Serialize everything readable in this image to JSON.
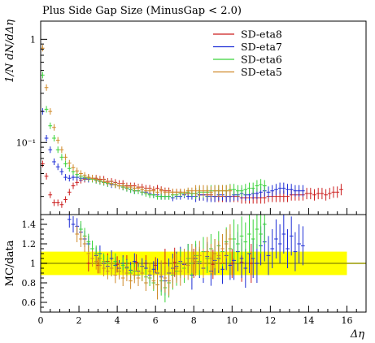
{
  "chart_data": {
    "type": "scatter",
    "title": "Plus Side Gap Size (MinusGap < 2.0)",
    "xlabel": "Δη",
    "xlim": [
      0,
      17
    ],
    "xticks": [
      "0",
      "2",
      "4",
      "6",
      "8",
      "10",
      "12",
      "14",
      "16"
    ],
    "xtick_values": [
      0,
      2,
      4,
      6,
      8,
      10,
      12,
      14,
      16
    ],
    "legend_position": "top-right",
    "colors": {
      "SD-eta8": "#cc1f1f",
      "SD-eta7": "#1f2fd6",
      "SD-eta6": "#3ad43a",
      "SD-eta5": "#d08a2a",
      "band": "#ffff00",
      "refline": "#9a9a00"
    },
    "main_panel": {
      "ylabel": "1/N dN/dΔη",
      "yscale": "log",
      "ylim": [
        0.02,
        1.5
      ],
      "yticks": [
        "1",
        "10⁻¹"
      ],
      "ytick_values": [
        1,
        0.1
      ],
      "series": [
        {
          "name": "SD-eta8",
          "x": [
            0.1,
            0.3,
            0.5,
            0.7,
            0.9,
            1.1,
            1.3,
            1.5,
            1.7,
            1.9,
            2.1,
            2.3,
            2.5,
            2.7,
            2.9,
            3.1,
            3.3,
            3.5,
            3.7,
            3.9,
            4.1,
            4.3,
            4.5,
            4.7,
            4.9,
            5.1,
            5.3,
            5.5,
            5.7,
            5.9,
            6.1,
            6.3,
            6.5,
            6.7,
            6.9,
            7.1,
            7.3,
            7.5,
            7.7,
            7.9,
            8.1,
            8.3,
            8.5,
            8.7,
            8.9,
            9.1,
            9.3,
            9.5,
            9.7,
            9.9,
            10.1,
            10.3,
            10.5,
            10.7,
            10.9,
            11.1,
            11.3,
            11.5,
            11.7,
            11.9,
            12.1,
            12.3,
            12.5,
            12.7,
            12.9,
            13.1,
            13.3,
            13.5,
            13.7,
            13.9,
            14.1,
            14.3,
            14.5,
            14.7,
            14.9,
            15.1,
            15.3,
            15.5,
            15.7
          ],
          "y": [
            0.062,
            0.047,
            0.031,
            0.026,
            0.026,
            0.025,
            0.028,
            0.033,
            0.038,
            0.041,
            0.043,
            0.044,
            0.046,
            0.045,
            0.045,
            0.044,
            0.044,
            0.042,
            0.042,
            0.041,
            0.04,
            0.04,
            0.038,
            0.038,
            0.038,
            0.037,
            0.037,
            0.036,
            0.036,
            0.035,
            0.036,
            0.035,
            0.034,
            0.034,
            0.033,
            0.033,
            0.033,
            0.032,
            0.032,
            0.032,
            0.032,
            0.031,
            0.031,
            0.031,
            0.031,
            0.03,
            0.03,
            0.03,
            0.03,
            0.03,
            0.03,
            0.03,
            0.029,
            0.029,
            0.029,
            0.029,
            0.029,
            0.029,
            0.029,
            0.03,
            0.03,
            0.03,
            0.03,
            0.03,
            0.03,
            0.031,
            0.031,
            0.031,
            0.031,
            0.032,
            0.032,
            0.031,
            0.032,
            0.032,
            0.031,
            0.032,
            0.033,
            0.033,
            0.035
          ]
        },
        {
          "name": "SD-eta7",
          "x": [
            0.1,
            0.3,
            0.5,
            0.7,
            0.9,
            1.1,
            1.3,
            1.5,
            1.7,
            1.9,
            2.1,
            2.3,
            2.5,
            2.7,
            2.9,
            3.1,
            3.3,
            3.5,
            3.7,
            3.9,
            4.1,
            4.3,
            4.5,
            4.7,
            4.9,
            5.1,
            5.3,
            5.5,
            5.7,
            5.9,
            6.1,
            6.3,
            6.5,
            6.7,
            6.9,
            7.1,
            7.3,
            7.5,
            7.7,
            7.9,
            8.1,
            8.3,
            8.5,
            8.7,
            8.9,
            9.1,
            9.3,
            9.5,
            9.7,
            9.9,
            10.1,
            10.3,
            10.5,
            10.7,
            10.9,
            11.1,
            11.3,
            11.5,
            11.7,
            11.9,
            12.1,
            12.3,
            12.5,
            12.7,
            12.9,
            13.1,
            13.3,
            13.5,
            13.7
          ],
          "y": [
            0.2,
            0.11,
            0.085,
            0.065,
            0.058,
            0.052,
            0.046,
            0.045,
            0.046,
            0.046,
            0.045,
            0.045,
            0.044,
            0.044,
            0.043,
            0.042,
            0.041,
            0.04,
            0.039,
            0.039,
            0.038,
            0.037,
            0.036,
            0.035,
            0.034,
            0.034,
            0.033,
            0.033,
            0.032,
            0.031,
            0.031,
            0.03,
            0.03,
            0.03,
            0.029,
            0.03,
            0.03,
            0.031,
            0.03,
            0.03,
            0.03,
            0.031,
            0.031,
            0.03,
            0.03,
            0.03,
            0.031,
            0.031,
            0.03,
            0.03,
            0.031,
            0.031,
            0.032,
            0.031,
            0.031,
            0.032,
            0.032,
            0.033,
            0.034,
            0.033,
            0.034,
            0.035,
            0.036,
            0.036,
            0.035,
            0.035,
            0.034,
            0.034,
            0.034
          ]
        },
        {
          "name": "SD-eta6",
          "x": [
            0.1,
            0.3,
            0.5,
            0.7,
            0.9,
            1.1,
            1.3,
            1.5,
            1.7,
            1.9,
            2.1,
            2.3,
            2.5,
            2.7,
            2.9,
            3.1,
            3.3,
            3.5,
            3.7,
            3.9,
            4.1,
            4.3,
            4.5,
            4.7,
            4.9,
            5.1,
            5.3,
            5.5,
            5.7,
            5.9,
            6.1,
            6.3,
            6.5,
            6.7,
            6.9,
            7.1,
            7.3,
            7.5,
            7.7,
            7.9,
            8.1,
            8.3,
            8.5,
            8.7,
            8.9,
            9.1,
            9.3,
            9.5,
            9.7,
            9.9,
            10.1,
            10.3,
            10.5,
            10.7,
            10.9,
            11.1,
            11.3,
            11.5,
            11.7
          ],
          "y": [
            0.45,
            0.21,
            0.145,
            0.11,
            0.085,
            0.072,
            0.062,
            0.056,
            0.052,
            0.049,
            0.047,
            0.046,
            0.045,
            0.044,
            0.043,
            0.042,
            0.041,
            0.04,
            0.04,
            0.039,
            0.038,
            0.037,
            0.036,
            0.035,
            0.034,
            0.034,
            0.033,
            0.032,
            0.031,
            0.031,
            0.03,
            0.03,
            0.03,
            0.03,
            0.031,
            0.031,
            0.032,
            0.032,
            0.033,
            0.032,
            0.032,
            0.033,
            0.033,
            0.033,
            0.034,
            0.034,
            0.034,
            0.034,
            0.034,
            0.035,
            0.035,
            0.034,
            0.034,
            0.035,
            0.036,
            0.036,
            0.038,
            0.039,
            0.038
          ]
        },
        {
          "name": "SD-eta5",
          "x": [
            0.1,
            0.3,
            0.5,
            0.7,
            0.9,
            1.1,
            1.3,
            1.5,
            1.7,
            1.9,
            2.1,
            2.3,
            2.5,
            2.7,
            2.9,
            3.1,
            3.3,
            3.5,
            3.7,
            3.9,
            4.1,
            4.3,
            4.5,
            4.7,
            4.9,
            5.1,
            5.3,
            5.5,
            5.7,
            5.9,
            6.1,
            6.3,
            6.5,
            6.7,
            6.9,
            7.1,
            7.3,
            7.5,
            7.7,
            7.9,
            8.1,
            8.3,
            8.5,
            8.7,
            8.9,
            9.1,
            9.3,
            9.5,
            9.7,
            9.9
          ],
          "y": [
            0.82,
            0.34,
            0.2,
            0.14,
            0.105,
            0.085,
            0.072,
            0.063,
            0.057,
            0.053,
            0.05,
            0.048,
            0.046,
            0.045,
            0.044,
            0.043,
            0.042,
            0.041,
            0.04,
            0.039,
            0.038,
            0.038,
            0.037,
            0.037,
            0.036,
            0.036,
            0.035,
            0.034,
            0.034,
            0.034,
            0.033,
            0.034,
            0.033,
            0.033,
            0.033,
            0.033,
            0.033,
            0.033,
            0.034,
            0.034,
            0.034,
            0.034,
            0.034,
            0.034,
            0.033,
            0.034,
            0.034,
            0.034,
            0.034,
            0.034
          ]
        }
      ]
    },
    "ratio_panel": {
      "ylabel": "MC/data",
      "ylim": [
        0.5,
        1.5
      ],
      "yticks": [
        "0.6",
        "0.8",
        "1",
        "1.2",
        "1.4"
      ],
      "ytick_values": [
        0.6,
        0.8,
        1.0,
        1.2,
        1.4
      ],
      "reference": 1.0,
      "band": {
        "x": [
          0,
          16
        ],
        "low": 0.88,
        "high": 1.12
      },
      "series": [
        {
          "name": "SD-eta8",
          "x": [
            2.5,
            3.0,
            3.5,
            4.0,
            4.5,
            5.0,
            5.5,
            6.0,
            6.5,
            7.0,
            7.5,
            8.0,
            8.5,
            9.0,
            9.5,
            10.0,
            10.5,
            11.0
          ],
          "y": [
            1.0,
            0.98,
            1.02,
            0.99,
            1.0,
            1.01,
            1.0,
            0.98,
            1.0,
            1.01,
            0.99,
            1.0,
            1.0,
            0.99,
            1.0,
            1.0,
            1.01,
            1.0
          ]
        },
        {
          "name": "SD-eta7",
          "x": [
            1.5,
            1.7,
            1.9,
            2.1,
            2.3,
            2.5,
            2.7,
            2.9,
            3.1,
            3.3,
            3.5,
            3.7,
            3.9,
            4.1,
            4.3,
            4.5,
            4.7,
            4.9,
            5.1,
            5.3,
            5.5,
            5.7,
            5.9,
            6.1,
            6.3,
            6.5,
            6.7,
            6.9,
            7.1,
            7.3,
            7.5,
            7.7,
            7.9,
            8.1,
            8.3,
            8.5,
            8.7,
            8.9,
            9.1,
            9.3,
            9.5,
            9.7,
            9.9,
            10.1,
            10.3,
            10.5,
            10.7,
            10.9,
            11.1,
            11.3,
            11.5,
            11.7,
            11.9,
            12.1,
            12.3,
            12.5,
            12.7,
            12.9,
            13.1,
            13.3,
            13.5,
            13.7
          ],
          "y": [
            1.45,
            1.4,
            1.38,
            1.32,
            1.25,
            1.2,
            1.15,
            1.08,
            1.1,
            1.0,
            0.97,
            1.05,
            0.98,
            0.95,
            1.0,
            0.96,
            0.93,
            1.02,
            0.92,
            0.97,
            0.95,
            0.88,
            0.94,
            0.9,
            0.86,
            0.82,
            0.9,
            0.95,
            0.97,
            1.02,
            0.99,
            1.05,
            0.88,
            1.05,
            1.0,
            0.95,
            1.07,
            0.92,
            1.03,
            1.05,
            0.94,
            1.08,
            0.98,
            1.03,
            1.12,
            1.05,
            0.95,
            1.1,
            1.05,
            1.0,
            1.18,
            1.22,
            1.08,
            1.15,
            1.25,
            1.2,
            1.3,
            1.15,
            1.28,
            1.12,
            1.2,
            1.18
          ]
        },
        {
          "name": "SD-eta6",
          "x": [
            2.1,
            2.3,
            2.5,
            2.7,
            2.9,
            3.1,
            3.3,
            3.5,
            3.7,
            3.9,
            4.1,
            4.3,
            4.5,
            4.7,
            4.9,
            5.1,
            5.3,
            5.5,
            5.7,
            5.9,
            6.1,
            6.3,
            6.5,
            6.7,
            6.9,
            7.1,
            7.3,
            7.5,
            7.7,
            7.9,
            8.1,
            8.3,
            8.5,
            8.7,
            8.9,
            9.1,
            9.3,
            9.5,
            9.7,
            9.9,
            10.1,
            10.3,
            10.5,
            10.7,
            10.9,
            11.1,
            11.3,
            11.5,
            11.7
          ],
          "y": [
            1.35,
            1.28,
            1.22,
            1.15,
            1.1,
            1.05,
            1.02,
            1.0,
            0.95,
            1.02,
            0.92,
            0.98,
            0.95,
            0.9,
            0.92,
            0.88,
            0.9,
            0.86,
            0.85,
            0.8,
            0.78,
            0.82,
            0.75,
            0.8,
            0.88,
            0.92,
            1.0,
            0.95,
            1.05,
            1.0,
            1.08,
            1.02,
            1.12,
            1.05,
            1.15,
            1.1,
            1.18,
            1.12,
            1.22,
            1.15,
            1.25,
            1.2,
            1.28,
            1.22,
            1.3,
            1.25,
            1.35,
            1.3,
            1.4
          ]
        },
        {
          "name": "SD-eta5",
          "x": [
            1.9,
            2.1,
            2.3,
            2.5,
            2.7,
            2.9,
            3.1,
            3.3,
            3.5,
            3.7,
            3.9,
            4.1,
            4.3,
            4.5,
            4.7,
            4.9,
            5.1,
            5.3,
            5.5,
            5.7,
            5.9,
            6.1,
            6.3,
            6.5,
            6.7,
            6.9,
            7.1,
            7.3,
            7.5,
            7.7,
            7.9,
            8.1,
            8.3,
            8.5,
            8.7,
            8.9,
            9.1,
            9.3,
            9.5,
            9.7,
            9.9
          ],
          "y": [
            1.3,
            1.25,
            1.2,
            1.1,
            1.05,
            1.02,
            0.98,
            0.95,
            0.92,
            0.95,
            0.88,
            0.92,
            0.85,
            0.9,
            0.82,
            0.88,
            0.85,
            0.9,
            0.8,
            0.92,
            0.82,
            0.78,
            0.88,
            0.85,
            0.82,
            0.9,
            0.95,
            0.92,
            1.0,
            0.98,
            1.05,
            1.02,
            1.08,
            1.0,
            1.12,
            1.05,
            1.1,
            1.08,
            1.15,
            1.2,
            1.25
          ]
        }
      ]
    }
  }
}
